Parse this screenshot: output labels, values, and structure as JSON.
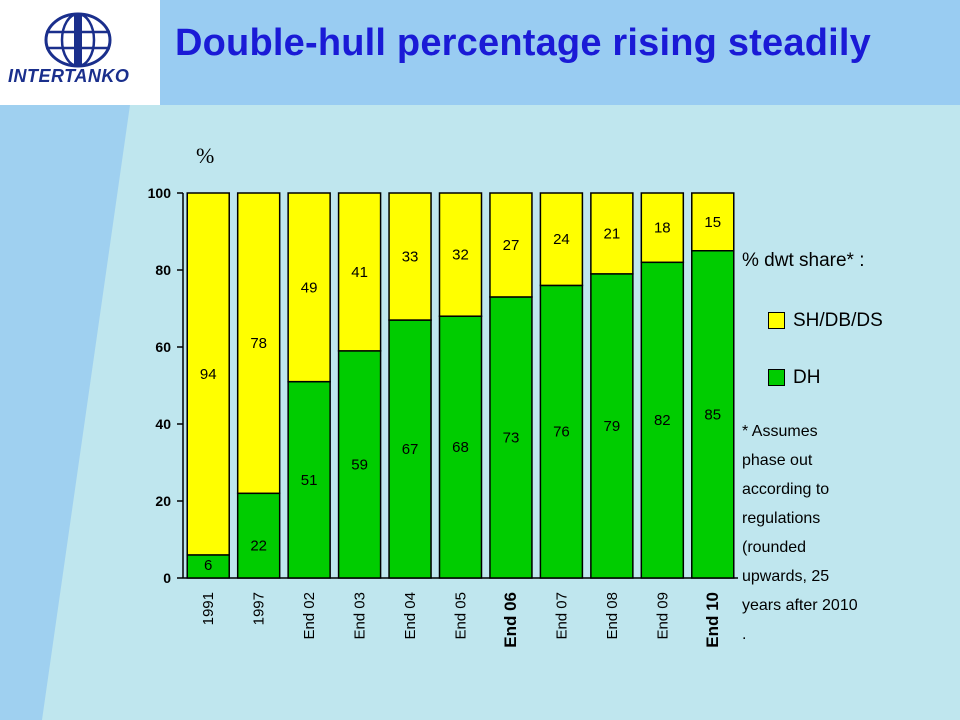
{
  "header": {
    "title": "Double-hull percentage rising steadily",
    "logo_text": "INTERTANKO"
  },
  "colors": {
    "dh": "#00cc00",
    "sh": "#ffff00",
    "title": "#1a1ad6",
    "background": "#bfe6ee",
    "header": "#99ccf2"
  },
  "chart_data": {
    "type": "bar",
    "stacked": true,
    "categories": [
      "1991",
      "1997",
      "End 02",
      "End 03",
      "End 04",
      "End 05",
      "End 06",
      "End 07",
      "End 08",
      "End 09",
      "End 10"
    ],
    "bold_categories": [
      "End 06",
      "End 10"
    ],
    "series": [
      {
        "name": "DH",
        "values": [
          6,
          22,
          51,
          59,
          67,
          68,
          73,
          76,
          79,
          82,
          85
        ]
      },
      {
        "name": "SH/DB/DS",
        "values": [
          94,
          78,
          49,
          41,
          33,
          32,
          27,
          24,
          21,
          18,
          15
        ]
      }
    ],
    "ylabel": "%",
    "ylim": [
      0,
      100
    ],
    "yticks": [
      "0",
      "20",
      "40",
      "60",
      "80",
      "100"
    ],
    "legend_title": "% dwt share*  :",
    "legend_placement": "right",
    "grid": false
  },
  "note": [
    "* Assumes",
    "phase out",
    "according to",
    "regulations",
    "(rounded",
    "upwards, 25",
    "years after 2010",
    "."
  ]
}
